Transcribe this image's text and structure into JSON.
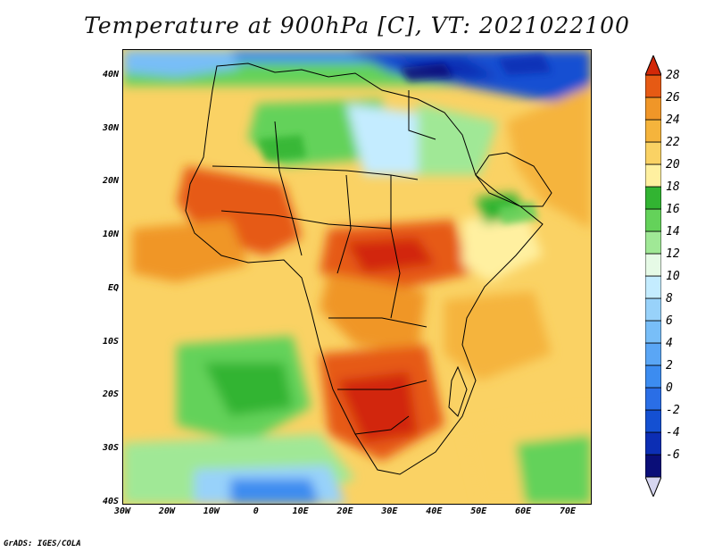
{
  "title": "Temperature at 900hPa [C], VT: 2021022100",
  "credit": "GrADS: IGES/COLA",
  "map": {
    "lon_range": [
      -30,
      75
    ],
    "lat_range": [
      -40,
      45
    ],
    "lon_ticks": [
      {
        "lon": -30,
        "label": "30W"
      },
      {
        "lon": -20,
        "label": "20W"
      },
      {
        "lon": -10,
        "label": "10W"
      },
      {
        "lon": 0,
        "label": "0"
      },
      {
        "lon": 10,
        "label": "10E"
      },
      {
        "lon": 20,
        "label": "20E"
      },
      {
        "lon": 30,
        "label": "30E"
      },
      {
        "lon": 40,
        "label": "40E"
      },
      {
        "lon": 50,
        "label": "50E"
      },
      {
        "lon": 60,
        "label": "60E"
      },
      {
        "lon": 70,
        "label": "70E"
      }
    ],
    "lat_ticks": [
      {
        "lat": 40,
        "label": "40N"
      },
      {
        "lat": 30,
        "label": "30N"
      },
      {
        "lat": 20,
        "label": "20N"
      },
      {
        "lat": 10,
        "label": "10N"
      },
      {
        "lat": 0,
        "label": "EQ"
      },
      {
        "lat": -10,
        "label": "10S"
      },
      {
        "lat": -20,
        "label": "20S"
      },
      {
        "lat": -30,
        "label": "30S"
      },
      {
        "lat": -40,
        "label": "40S"
      }
    ]
  },
  "colorbar": {
    "levels": [
      {
        "value": -6,
        "label": "-6",
        "color": "#0a0e78"
      },
      {
        "value": -4,
        "label": "-4",
        "color": "#0c2eb4"
      },
      {
        "value": -2,
        "label": "-2",
        "color": "#1450d2"
      },
      {
        "value": 0,
        "label": "0",
        "color": "#2a6ee6"
      },
      {
        "value": 2,
        "label": "2",
        "color": "#3c8cf0"
      },
      {
        "value": 4,
        "label": "4",
        "color": "#5aa6f5"
      },
      {
        "value": 6,
        "label": "6",
        "color": "#78bef8"
      },
      {
        "value": 8,
        "label": "8",
        "color": "#98d2fa"
      },
      {
        "value": 10,
        "label": "10",
        "color": "#c4ecff"
      },
      {
        "value": 12,
        "label": "12",
        "color": "#e6fae6"
      },
      {
        "value": 14,
        "label": "14",
        "color": "#a0e896"
      },
      {
        "value": 16,
        "label": "16",
        "color": "#64d25a"
      },
      {
        "value": 18,
        "label": "18",
        "color": "#32b432"
      },
      {
        "value": 20,
        "label": "20",
        "color": "#fff0a0"
      },
      {
        "value": 22,
        "label": "22",
        "color": "#fad264"
      },
      {
        "value": 24,
        "label": "24",
        "color": "#f5b43c"
      },
      {
        "value": 26,
        "label": "26",
        "color": "#f09628"
      },
      {
        "value": 28,
        "label": "28",
        "color": "#e65a14"
      }
    ],
    "top_color": "#d22808",
    "under_color": "#d6d6f0"
  }
}
